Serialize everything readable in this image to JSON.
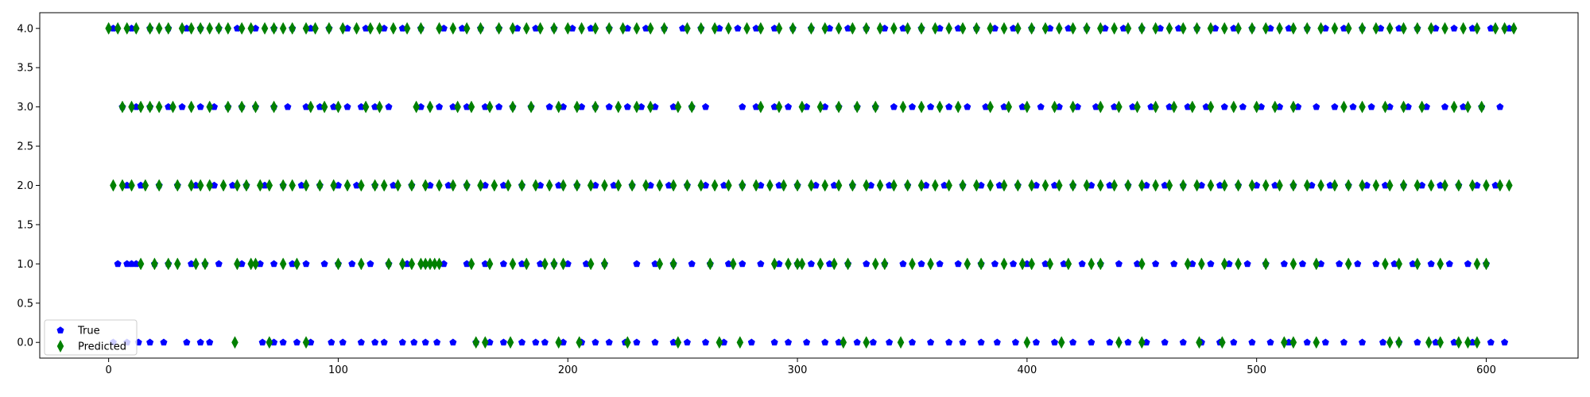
{
  "chart_data": {
    "type": "scatter",
    "title": "",
    "xlabel": "",
    "ylabel": "",
    "xlim": [
      -30,
      640
    ],
    "ylim": [
      -0.2,
      4.2
    ],
    "xticks": [
      0,
      100,
      200,
      300,
      400,
      500,
      600
    ],
    "yticks": [
      0.0,
      0.5,
      1.0,
      1.5,
      2.0,
      2.5,
      3.0,
      3.5,
      4.0
    ],
    "xtick_labels": [
      "0",
      "100",
      "200",
      "300",
      "400",
      "500",
      "600"
    ],
    "ytick_labels": [
      "0.0",
      "0.5",
      "1.0",
      "1.5",
      "2.0",
      "2.5",
      "3.0",
      "3.5",
      "4.0"
    ],
    "grid": false,
    "legend_position": "lower-left",
    "series": [
      {
        "name": "True",
        "marker": "pentagon",
        "color": "#0000ff",
        "points": {
          "0": [
            2,
            8,
            13,
            18,
            24,
            34,
            40,
            44,
            67,
            72,
            76,
            82,
            88,
            97,
            102,
            110,
            116,
            120,
            128,
            133,
            138,
            143,
            150,
            160,
            166,
            172,
            180,
            186,
            190,
            198,
            206,
            212,
            218,
            225,
            230,
            238,
            246,
            252,
            260,
            268,
            280,
            290,
            296,
            304,
            312,
            318,
            326,
            333,
            340,
            350,
            358,
            366,
            372,
            380,
            387,
            395,
            404,
            412,
            420,
            428,
            436,
            444,
            452,
            460,
            468,
            476,
            484,
            490,
            498,
            506,
            514,
            522,
            530,
            538,
            546,
            555,
            562,
            570,
            578,
            586,
            594,
            602,
            608
          ],
          "1": [
            4,
            8,
            10,
            12,
            20,
            26,
            36,
            42,
            48,
            58,
            66,
            72,
            80,
            86,
            94,
            100,
            106,
            114,
            122,
            130,
            138,
            146,
            156,
            164,
            172,
            180,
            188,
            194,
            200,
            208,
            216,
            230,
            238,
            246,
            254,
            262,
            270,
            276,
            284,
            292,
            300,
            306,
            314,
            322,
            330,
            338,
            346,
            354,
            362,
            370,
            380,
            386,
            394,
            400,
            408,
            416,
            424,
            432,
            440,
            448,
            456,
            464,
            472,
            480,
            488,
            496,
            504,
            512,
            520,
            528,
            536,
            544,
            552,
            560,
            568,
            576,
            584,
            592,
            600
          ],
          "2": [
            8,
            14,
            22,
            30,
            38,
            46,
            54,
            60,
            68,
            76,
            84,
            92,
            100,
            108,
            116,
            124,
            132,
            140,
            148,
            156,
            164,
            172,
            180,
            188,
            196,
            204,
            212,
            220,
            228,
            236,
            244,
            252,
            260,
            268,
            276,
            284,
            292,
            300,
            308,
            316,
            324,
            332,
            340,
            348,
            356,
            364,
            372,
            380,
            388,
            396,
            404,
            412,
            420,
            428,
            436,
            444,
            452,
            460,
            468,
            476,
            484,
            492,
            500,
            508,
            516,
            524,
            532,
            540,
            548,
            556,
            564,
            572,
            580,
            588,
            596,
            604
          ],
          "3": [
            6,
            12,
            18,
            26,
            32,
            40,
            46,
            52,
            58,
            64,
            72,
            78,
            86,
            92,
            98,
            104,
            110,
            116,
            122,
            136,
            144,
            150,
            156,
            164,
            170,
            176,
            184,
            192,
            198,
            206,
            212,
            218,
            226,
            232,
            238,
            246,
            254,
            260,
            276,
            282,
            290,
            296,
            304,
            312,
            318,
            326,
            334,
            342,
            350,
            358,
            366,
            374,
            382,
            390,
            398,
            406,
            414,
            422,
            430,
            438,
            446,
            454,
            462,
            470,
            478,
            486,
            494,
            502,
            510,
            518,
            526,
            534,
            542,
            550,
            558,
            566,
            574,
            582,
            590,
            598,
            606
          ],
          "4": [
            2,
            10,
            18,
            26,
            34,
            40,
            48,
            56,
            64,
            72,
            80,
            88,
            96,
            104,
            112,
            120,
            128,
            136,
            146,
            154,
            162,
            170,
            178,
            186,
            194,
            202,
            210,
            218,
            226,
            234,
            242,
            250,
            258,
            266,
            274,
            282,
            290,
            298,
            306,
            314,
            322,
            330,
            338,
            346,
            354,
            362,
            370,
            378,
            386,
            394,
            402,
            410,
            418,
            426,
            434,
            442,
            450,
            458,
            466,
            474,
            482,
            490,
            498,
            506,
            514,
            522,
            530,
            538,
            546,
            554,
            562,
            570,
            578,
            586,
            594,
            602,
            610
          ]
        }
      },
      {
        "name": "Predicted",
        "marker": "thin_diamond",
        "color": "#008000",
        "points": {
          "0": [
            55,
            70,
            86,
            160,
            164,
            175,
            196,
            205,
            226,
            248,
            266,
            275,
            320,
            330,
            345,
            400,
            415,
            440,
            450,
            475,
            485,
            512,
            516,
            526,
            558,
            562,
            575,
            580,
            588,
            592,
            596
          ],
          "1": [
            14,
            20,
            26,
            30,
            38,
            42,
            56,
            62,
            64,
            76,
            82,
            100,
            110,
            122,
            128,
            132,
            136,
            138,
            140,
            142,
            144,
            158,
            166,
            176,
            182,
            190,
            194,
            198,
            210,
            216,
            240,
            246,
            262,
            272,
            290,
            296,
            300,
            302,
            310,
            316,
            322,
            334,
            338,
            350,
            358,
            374,
            380,
            390,
            398,
            402,
            410,
            418,
            428,
            432,
            450,
            470,
            476,
            486,
            492,
            504,
            516,
            526,
            540,
            556,
            562,
            570,
            580,
            596,
            600
          ],
          "2": [
            2,
            6,
            10,
            16,
            22,
            30,
            36,
            40,
            44,
            50,
            56,
            60,
            66,
            70,
            76,
            80,
            86,
            92,
            98,
            104,
            110,
            116,
            120,
            126,
            132,
            138,
            144,
            150,
            156,
            162,
            168,
            174,
            180,
            186,
            192,
            198,
            204,
            210,
            216,
            222,
            228,
            234,
            240,
            246,
            252,
            258,
            264,
            270,
            276,
            282,
            288,
            294,
            300,
            306,
            312,
            318,
            324,
            330,
            336,
            342,
            348,
            354,
            360,
            366,
            372,
            378,
            384,
            390,
            396,
            402,
            408,
            414,
            420,
            426,
            432,
            438,
            444,
            450,
            456,
            462,
            468,
            474,
            480,
            486,
            492,
            498,
            504,
            510,
            516,
            522,
            528,
            534,
            540,
            546,
            552,
            558,
            564,
            570,
            576,
            582,
            588,
            594,
            600,
            606,
            610
          ],
          "3": [
            6,
            10,
            14,
            18,
            22,
            28,
            36,
            44,
            52,
            58,
            64,
            72,
            88,
            94,
            100,
            112,
            118,
            134,
            140,
            152,
            158,
            166,
            176,
            184,
            196,
            204,
            212,
            222,
            230,
            236,
            248,
            254,
            284,
            292,
            302,
            310,
            318,
            326,
            334,
            346,
            354,
            362,
            370,
            384,
            392,
            400,
            412,
            420,
            432,
            440,
            448,
            456,
            464,
            472,
            480,
            490,
            500,
            508,
            516,
            538,
            546,
            556,
            564,
            572,
            586,
            592,
            598
          ],
          "4": [
            0,
            4,
            8,
            12,
            18,
            22,
            26,
            32,
            36,
            40,
            44,
            48,
            52,
            58,
            62,
            68,
            72,
            76,
            80,
            86,
            90,
            96,
            102,
            108,
            114,
            118,
            124,
            130,
            136,
            144,
            150,
            156,
            162,
            170,
            176,
            182,
            188,
            194,
            200,
            206,
            212,
            218,
            224,
            230,
            236,
            242,
            252,
            258,
            264,
            270,
            278,
            284,
            292,
            298,
            306,
            312,
            318,
            324,
            330,
            336,
            342,
            348,
            354,
            360,
            366,
            372,
            378,
            384,
            390,
            396,
            402,
            408,
            414,
            420,
            426,
            432,
            438,
            444,
            450,
            456,
            462,
            468,
            474,
            480,
            486,
            492,
            498,
            504,
            510,
            516,
            522,
            528,
            534,
            540,
            546,
            552,
            558,
            564,
            570,
            576,
            582,
            590,
            596,
            604,
            608,
            612
          ]
        }
      }
    ]
  }
}
